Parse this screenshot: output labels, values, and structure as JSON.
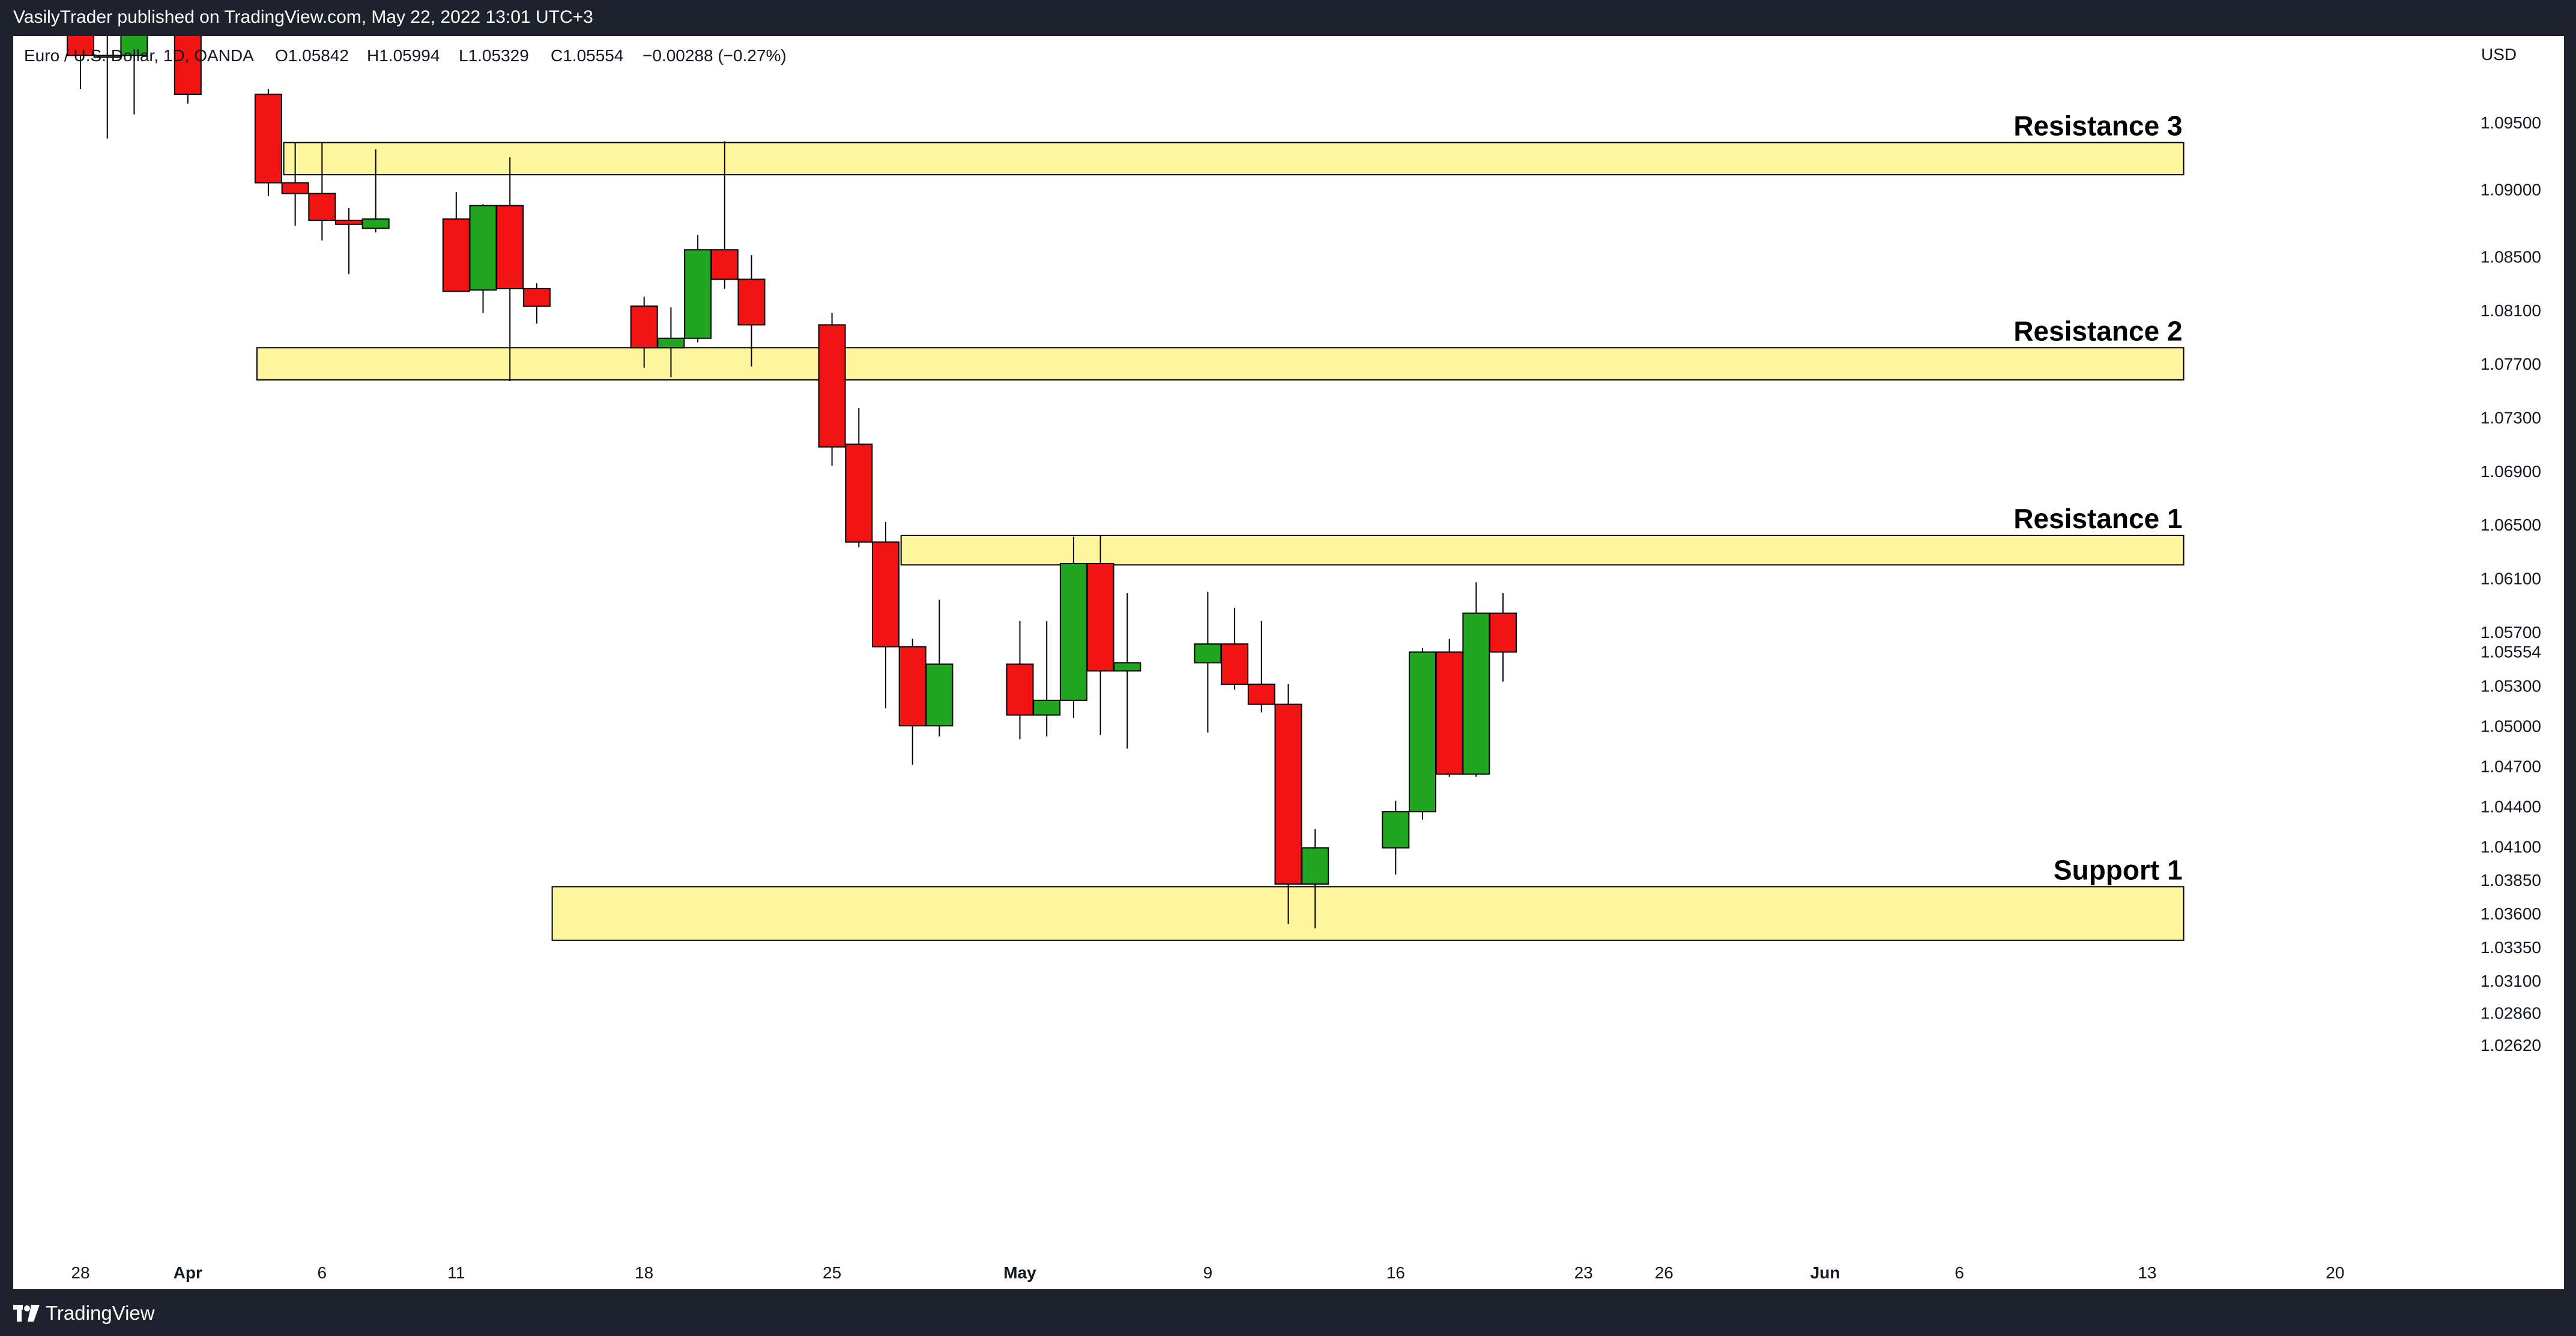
{
  "header": {
    "publish_line": "VasilyTrader published on TradingView.com, May 22, 2022 13:01 UTC+3"
  },
  "footer": {
    "brand": "TradingView"
  },
  "colors": {
    "up": "#1fa51f",
    "down": "#f21313",
    "zone_fill": "#fff59d",
    "frame_bg": "#1e222d"
  },
  "chart_data": {
    "type": "candlestick",
    "symbol_line": {
      "name": "Euro / U.S. Dollar, 1D, OANDA",
      "open": "O1.05842",
      "high": "H1.05994",
      "low": "L1.05329",
      "close": "C1.05554",
      "change": "−0.00288 (−0.27%)"
    },
    "currency": "USD",
    "y_ticks": [
      "1.09500",
      "1.09000",
      "1.08500",
      "1.08100",
      "1.07700",
      "1.07300",
      "1.06900",
      "1.06500",
      "1.06100",
      "1.05700",
      "1.05300",
      "1.05000",
      "1.04700",
      "1.04400",
      "1.04100",
      "1.03850",
      "1.03600",
      "1.03350",
      "1.03100",
      "1.02860",
      "1.02620"
    ],
    "last_price_label": "1.05554",
    "x_ticks": [
      "28",
      "Apr",
      "6",
      "11",
      "18",
      "25",
      "May",
      "9",
      "16",
      "23",
      "26",
      "Jun",
      "6",
      "13",
      "20"
    ],
    "ylim": [
      1.0262,
      1.0995
    ],
    "zones": [
      {
        "label": "Resistance 3",
        "from_date": "2022-04-05",
        "to_date": "2022-06-14",
        "low": 1.0911,
        "high": 1.0935
      },
      {
        "label": "Resistance 2",
        "from_date": "2022-04-04",
        "to_date": "2022-06-14",
        "low": 1.0758,
        "high": 1.0782
      },
      {
        "label": "Resistance 1",
        "from_date": "2022-04-28",
        "to_date": "2022-06-14",
        "low": 1.062,
        "high": 1.0642
      },
      {
        "label": "Support 1",
        "from_date": "2022-04-15",
        "to_date": "2022-06-14",
        "low": 1.034,
        "high": 1.038
      }
    ],
    "candles": [
      {
        "date": "2022-03-28",
        "open": 1.103,
        "high": 1.105,
        "low": 1.0975,
        "close": 1.1
      },
      {
        "date": "2022-03-29",
        "open": 1.0999,
        "high": 1.1015,
        "low": 1.0938,
        "close": 1.1
      },
      {
        "date": "2022-03-30",
        "open": 1.1,
        "high": 1.105,
        "low": 1.0956,
        "close": 1.105
      },
      {
        "date": "2022-04-01",
        "open": 1.105,
        "high": 1.107,
        "low": 1.0964,
        "close": 1.0971
      },
      {
        "date": "2022-04-04",
        "open": 1.0971,
        "high": 1.0975,
        "low": 1.0895,
        "close": 1.0905
      },
      {
        "date": "2022-04-05",
        "open": 1.0905,
        "high": 1.0935,
        "low": 1.0873,
        "close": 1.0897
      },
      {
        "date": "2022-04-06",
        "open": 1.0897,
        "high": 1.0935,
        "low": 1.0862,
        "close": 1.0877
      },
      {
        "date": "2022-04-07",
        "open": 1.0877,
        "high": 1.0886,
        "low": 1.0837,
        "close": 1.0874
      },
      {
        "date": "2022-04-08",
        "open": 1.0871,
        "high": 1.093,
        "low": 1.0868,
        "close": 1.0878
      },
      {
        "date": "2022-04-11",
        "open": 1.0878,
        "high": 1.0898,
        "low": 1.0825,
        "close": 1.0824
      },
      {
        "date": "2022-04-12",
        "open": 1.0825,
        "high": 1.0889,
        "low": 1.0808,
        "close": 1.0888
      },
      {
        "date": "2022-04-13",
        "open": 1.0888,
        "high": 1.0924,
        "low": 1.0757,
        "close": 1.0826
      },
      {
        "date": "2022-04-14",
        "open": 1.0826,
        "high": 1.083,
        "low": 1.08,
        "close": 1.0813
      },
      {
        "date": "2022-04-18",
        "open": 1.0813,
        "high": 1.082,
        "low": 1.0767,
        "close": 1.0782
      },
      {
        "date": "2022-04-19",
        "open": 1.0782,
        "high": 1.0812,
        "low": 1.076,
        "close": 1.0789
      },
      {
        "date": "2022-04-20",
        "open": 1.0789,
        "high": 1.0866,
        "low": 1.0786,
        "close": 1.0855
      },
      {
        "date": "2022-04-21",
        "open": 1.0855,
        "high": 1.0936,
        "low": 1.0826,
        "close": 1.0833
      },
      {
        "date": "2022-04-22",
        "open": 1.0833,
        "high": 1.0851,
        "low": 1.0768,
        "close": 1.0799
      },
      {
        "date": "2022-04-25",
        "open": 1.0799,
        "high": 1.0808,
        "low": 1.0694,
        "close": 1.0708
      },
      {
        "date": "2022-04-26",
        "open": 1.071,
        "high": 1.0737,
        "low": 1.0633,
        "close": 1.0637
      },
      {
        "date": "2022-04-27",
        "open": 1.0637,
        "high": 1.0652,
        "low": 1.0513,
        "close": 1.0559
      },
      {
        "date": "2022-04-28",
        "open": 1.0559,
        "high": 1.0565,
        "low": 1.0471,
        "close": 1.05
      },
      {
        "date": "2022-04-29",
        "open": 1.05,
        "high": 1.0594,
        "low": 1.0492,
        "close": 1.0546
      },
      {
        "date": "2022-05-02",
        "open": 1.0546,
        "high": 1.0578,
        "low": 1.049,
        "close": 1.0508
      },
      {
        "date": "2022-05-03",
        "open": 1.0508,
        "high": 1.0578,
        "low": 1.0492,
        "close": 1.0519
      },
      {
        "date": "2022-05-04",
        "open": 1.0519,
        "high": 1.0641,
        "low": 1.0506,
        "close": 1.0621
      },
      {
        "date": "2022-05-05",
        "open": 1.0621,
        "high": 1.0642,
        "low": 1.0493,
        "close": 1.0541
      },
      {
        "date": "2022-05-06",
        "open": 1.0541,
        "high": 1.0599,
        "low": 1.0483,
        "close": 1.0547
      },
      {
        "date": "2022-05-09",
        "open": 1.0547,
        "high": 1.06,
        "low": 1.0495,
        "close": 1.0561
      },
      {
        "date": "2022-05-10",
        "open": 1.0561,
        "high": 1.0588,
        "low": 1.0527,
        "close": 1.0531
      },
      {
        "date": "2022-05-11",
        "open": 1.0531,
        "high": 1.0578,
        "low": 1.051,
        "close": 1.0516
      },
      {
        "date": "2022-05-12",
        "open": 1.0516,
        "high": 1.0531,
        "low": 1.0352,
        "close": 1.0382
      },
      {
        "date": "2022-05-13",
        "open": 1.0382,
        "high": 1.0423,
        "low": 1.0349,
        "close": 1.0409
      },
      {
        "date": "2022-05-16",
        "open": 1.0409,
        "high": 1.0444,
        "low": 1.0389,
        "close": 1.0436
      },
      {
        "date": "2022-05-17",
        "open": 1.0436,
        "high": 1.0558,
        "low": 1.043,
        "close": 1.0555
      },
      {
        "date": "2022-05-18",
        "open": 1.0555,
        "high": 1.0565,
        "low": 1.0462,
        "close": 1.0464
      },
      {
        "date": "2022-05-19",
        "open": 1.0464,
        "high": 1.0607,
        "low": 1.0462,
        "close": 1.0584
      },
      {
        "date": "2022-05-20",
        "open": 1.0584,
        "high": 1.0599,
        "low": 1.0533,
        "close": 1.0555
      }
    ]
  }
}
